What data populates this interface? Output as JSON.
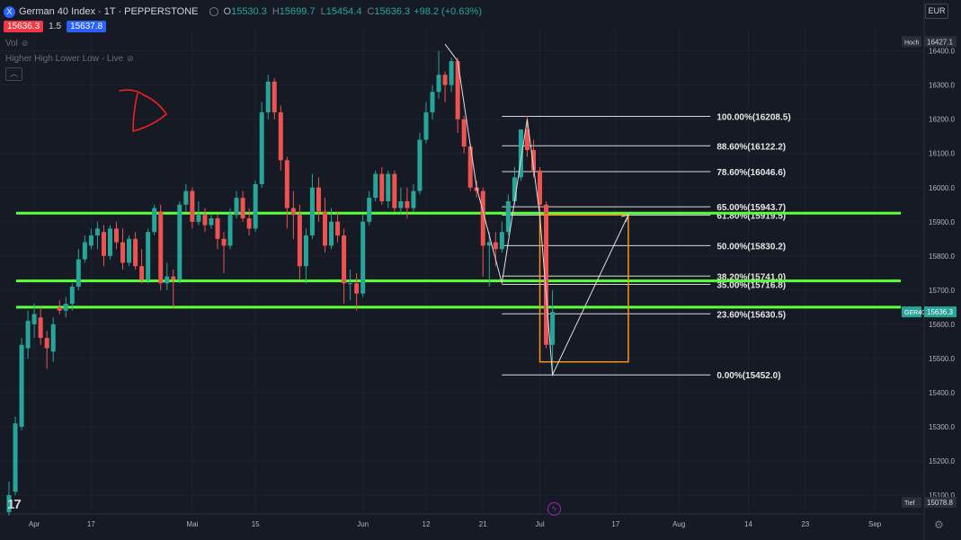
{
  "header": {
    "symbol_icon": "X",
    "title": "German 40 Index · 1T · PEPPERSTONE",
    "open_label": "O",
    "open": "15530.3",
    "high_label": "H",
    "high": "15699.7",
    "low_label": "L",
    "low": "15454.4",
    "close_label": "C",
    "close": "15636.3",
    "change": "+98.2 (+0.63%)"
  },
  "quote": {
    "sell": "15636.3",
    "spread": "1.5",
    "buy": "15637.8"
  },
  "indicators": {
    "vol": "Vol",
    "hhll": "Higher High Lower Low - Live",
    "eye_icon": "eye-off-icon"
  },
  "currency": "EUR",
  "colors": {
    "background": "#161a25",
    "up": "#26a69a",
    "down": "#ef5350",
    "sr_line": "#5cff3a",
    "fib_line": "#d9d9d9",
    "box": "#f7931a",
    "grid": "#1f2330",
    "text": "#b2b5be"
  },
  "chart_data": {
    "type": "candlestick",
    "symbol": "GER40",
    "ylim": [
      15045,
      16470
    ],
    "y_ticks": [
      15100,
      15200,
      15300,
      15400,
      15500,
      15600,
      15700,
      15800,
      15900,
      16000,
      16100,
      16200,
      16300,
      16400
    ],
    "y_tick_labels": [
      "15100.0",
      "15200.0",
      "15300.0",
      "15400.0",
      "15500.0",
      "15600.0",
      "15700.0",
      "15800.0",
      "15900.0",
      "16000.0",
      "16100.0",
      "16200.0",
      "16300.0",
      "16400.0"
    ],
    "x_labels": [
      "Apr",
      "17",
      "Mai",
      "15",
      "Jun",
      "12",
      "21",
      "Jul",
      "17",
      "Aug",
      "14",
      "23",
      "Sep"
    ],
    "x_label_positions": [
      4,
      13,
      29,
      39,
      56,
      66,
      75,
      84,
      96,
      106,
      117,
      126,
      137
    ],
    "candles": [
      {
        "o": 15050,
        "h": 15140,
        "l": 15040,
        "c": 15100
      },
      {
        "o": 15110,
        "h": 15330,
        "l": 15100,
        "c": 15310
      },
      {
        "o": 15300,
        "h": 15560,
        "l": 15290,
        "c": 15540
      },
      {
        "o": 15530,
        "h": 15640,
        "l": 15500,
        "c": 15610
      },
      {
        "o": 15600,
        "h": 15660,
        "l": 15560,
        "c": 15630
      },
      {
        "o": 15620,
        "h": 15650,
        "l": 15540,
        "c": 15560
      },
      {
        "o": 15560,
        "h": 15580,
        "l": 15470,
        "c": 15530
      },
      {
        "o": 15520,
        "h": 15620,
        "l": 15490,
        "c": 15600
      },
      {
        "o": 15650,
        "h": 15670,
        "l": 15630,
        "c": 15640
      },
      {
        "o": 15640,
        "h": 15680,
        "l": 15620,
        "c": 15660
      },
      {
        "o": 15660,
        "h": 15720,
        "l": 15640,
        "c": 15710
      },
      {
        "o": 15710,
        "h": 15820,
        "l": 15700,
        "c": 15790
      },
      {
        "o": 15790,
        "h": 15860,
        "l": 15780,
        "c": 15840
      },
      {
        "o": 15830,
        "h": 15880,
        "l": 15820,
        "c": 15860
      },
      {
        "o": 15860,
        "h": 15900,
        "l": 15820,
        "c": 15880
      },
      {
        "o": 15870,
        "h": 15890,
        "l": 15770,
        "c": 15800
      },
      {
        "o": 15800,
        "h": 15890,
        "l": 15790,
        "c": 15880
      },
      {
        "o": 15880,
        "h": 15900,
        "l": 15820,
        "c": 15840
      },
      {
        "o": 15840,
        "h": 15880,
        "l": 15760,
        "c": 15780
      },
      {
        "o": 15780,
        "h": 15860,
        "l": 15770,
        "c": 15850
      },
      {
        "o": 15850,
        "h": 15870,
        "l": 15760,
        "c": 15770
      },
      {
        "o": 15770,
        "h": 15820,
        "l": 15720,
        "c": 15730
      },
      {
        "o": 15730,
        "h": 15880,
        "l": 15720,
        "c": 15870
      },
      {
        "o": 15870,
        "h": 15950,
        "l": 15860,
        "c": 15940
      },
      {
        "o": 15930,
        "h": 15950,
        "l": 15700,
        "c": 15720
      },
      {
        "o": 15720,
        "h": 15780,
        "l": 15700,
        "c": 15740
      },
      {
        "o": 15740,
        "h": 15760,
        "l": 15650,
        "c": 15730
      },
      {
        "o": 15730,
        "h": 15960,
        "l": 15720,
        "c": 15950
      },
      {
        "o": 15950,
        "h": 16010,
        "l": 15930,
        "c": 15990
      },
      {
        "o": 15990,
        "h": 16000,
        "l": 15880,
        "c": 15900
      },
      {
        "o": 15900,
        "h": 15960,
        "l": 15890,
        "c": 15920
      },
      {
        "o": 15920,
        "h": 15940,
        "l": 15870,
        "c": 15890
      },
      {
        "o": 15890,
        "h": 15920,
        "l": 15880,
        "c": 15910
      },
      {
        "o": 15910,
        "h": 15920,
        "l": 15820,
        "c": 15850
      },
      {
        "o": 15850,
        "h": 15870,
        "l": 15750,
        "c": 15830
      },
      {
        "o": 15830,
        "h": 15940,
        "l": 15820,
        "c": 15920
      },
      {
        "o": 15920,
        "h": 15990,
        "l": 15910,
        "c": 15970
      },
      {
        "o": 15970,
        "h": 15990,
        "l": 15900,
        "c": 15910
      },
      {
        "o": 15910,
        "h": 15940,
        "l": 15860,
        "c": 15880
      },
      {
        "o": 15880,
        "h": 16020,
        "l": 15870,
        "c": 16010
      },
      {
        "o": 16010,
        "h": 16250,
        "l": 16000,
        "c": 16220
      },
      {
        "o": 16220,
        "h": 16330,
        "l": 16200,
        "c": 16310
      },
      {
        "o": 16310,
        "h": 16320,
        "l": 16200,
        "c": 16220
      },
      {
        "o": 16220,
        "h": 16240,
        "l": 16050,
        "c": 16080
      },
      {
        "o": 16080,
        "h": 16090,
        "l": 15880,
        "c": 15940
      },
      {
        "o": 15940,
        "h": 15990,
        "l": 15850,
        "c": 15920
      },
      {
        "o": 15920,
        "h": 15950,
        "l": 15730,
        "c": 15770
      },
      {
        "o": 15770,
        "h": 15880,
        "l": 15720,
        "c": 15860
      },
      {
        "o": 15860,
        "h": 16040,
        "l": 15850,
        "c": 16000
      },
      {
        "o": 16000,
        "h": 16030,
        "l": 15900,
        "c": 15930
      },
      {
        "o": 15930,
        "h": 15970,
        "l": 15810,
        "c": 15830
      },
      {
        "o": 15830,
        "h": 15940,
        "l": 15820,
        "c": 15900
      },
      {
        "o": 15900,
        "h": 15930,
        "l": 15840,
        "c": 15860
      },
      {
        "o": 15860,
        "h": 15880,
        "l": 15660,
        "c": 15720
      },
      {
        "o": 15720,
        "h": 15760,
        "l": 15670,
        "c": 15720
      },
      {
        "o": 15720,
        "h": 15750,
        "l": 15640,
        "c": 15690
      },
      {
        "o": 15690,
        "h": 15920,
        "l": 15680,
        "c": 15900
      },
      {
        "o": 15900,
        "h": 15990,
        "l": 15890,
        "c": 15970
      },
      {
        "o": 15970,
        "h": 16050,
        "l": 15960,
        "c": 16040
      },
      {
        "o": 16040,
        "h": 16060,
        "l": 15950,
        "c": 15960
      },
      {
        "o": 15960,
        "h": 16050,
        "l": 15940,
        "c": 16040
      },
      {
        "o": 16040,
        "h": 16050,
        "l": 15930,
        "c": 15940
      },
      {
        "o": 15940,
        "h": 16000,
        "l": 15920,
        "c": 15960
      },
      {
        "o": 15960,
        "h": 16000,
        "l": 15910,
        "c": 15940
      },
      {
        "o": 15940,
        "h": 16010,
        "l": 15930,
        "c": 15990
      },
      {
        "o": 15990,
        "h": 16160,
        "l": 15980,
        "c": 16140
      },
      {
        "o": 16140,
        "h": 16250,
        "l": 16130,
        "c": 16220
      },
      {
        "o": 16220,
        "h": 16300,
        "l": 16200,
        "c": 16280
      },
      {
        "o": 16280,
        "h": 16400,
        "l": 16260,
        "c": 16330
      },
      {
        "o": 16330,
        "h": 16340,
        "l": 16250,
        "c": 16300
      },
      {
        "o": 16300,
        "h": 16380,
        "l": 16280,
        "c": 16370
      },
      {
        "o": 16370,
        "h": 16380,
        "l": 16160,
        "c": 16200
      },
      {
        "o": 16200,
        "h": 16210,
        "l": 16100,
        "c": 16120
      },
      {
        "o": 16120,
        "h": 16130,
        "l": 15990,
        "c": 16000
      },
      {
        "o": 16000,
        "h": 16020,
        "l": 15970,
        "c": 15990
      },
      {
        "o": 15990,
        "h": 16000,
        "l": 15740,
        "c": 15830
      },
      {
        "o": 15830,
        "h": 15870,
        "l": 15710,
        "c": 15840
      },
      {
        "o": 15840,
        "h": 15870,
        "l": 15770,
        "c": 15820
      },
      {
        "o": 15820,
        "h": 15900,
        "l": 15810,
        "c": 15870
      },
      {
        "o": 15870,
        "h": 15980,
        "l": 15860,
        "c": 15960
      },
      {
        "o": 15960,
        "h": 16060,
        "l": 15950,
        "c": 16030
      },
      {
        "o": 16030,
        "h": 16170,
        "l": 16020,
        "c": 16170
      },
      {
        "o": 16170,
        "h": 16210,
        "l": 16090,
        "c": 16110
      },
      {
        "o": 16110,
        "h": 16140,
        "l": 16030,
        "c": 16050
      },
      {
        "o": 16050,
        "h": 16060,
        "l": 15930,
        "c": 15950
      },
      {
        "o": 15950,
        "h": 15960,
        "l": 15530,
        "c": 15540
      },
      {
        "o": 15540,
        "h": 15700,
        "l": 15454,
        "c": 15636
      }
    ],
    "sr_levels": [
      15925,
      15727,
      15650
    ],
    "fibonacci": {
      "levels": [
        {
          "label": "100.00%(16208.5)",
          "price": 16208.5
        },
        {
          "label": "88.60%(16122.2)",
          "price": 16122.2
        },
        {
          "label": "78.60%(16046.6)",
          "price": 16046.6
        },
        {
          "label": "65.00%(15943.7)",
          "price": 15943.7
        },
        {
          "label": "61.80%(15919.5)",
          "price": 15919.5
        },
        {
          "label": "50.00%(15830.2)",
          "price": 15830.2
        },
        {
          "label": "38.20%(15741.0)",
          "price": 15741.0
        },
        {
          "label": "35.00%(15716.8)",
          "price": 15716.8
        },
        {
          "label": "23.60%(15630.5)",
          "price": 15630.5
        },
        {
          "label": "0.00%(15452.0)",
          "price": 15452.0
        }
      ]
    },
    "zigzag": [
      [
        69,
        16420
      ],
      [
        71,
        16370
      ],
      [
        74,
        16000
      ],
      [
        78,
        15720
      ],
      [
        82,
        16200
      ],
      [
        84,
        15919
      ],
      [
        86,
        15452
      ],
      [
        98,
        15920
      ]
    ],
    "box": {
      "x0": 84,
      "x1": 98,
      "y0": 15920,
      "y1": 15490
    },
    "price_tags": {
      "hoch_label": "Hoch",
      "hoch_value": "16427.1",
      "hoch_price": 16427.1,
      "last_symbol": "GER40",
      "last_value": "15636.3",
      "last_price": 15636.3,
      "tief_label": "Tief",
      "tief_value": "15078.8",
      "tief_price": 15078.8
    },
    "annotation_text": "D"
  }
}
